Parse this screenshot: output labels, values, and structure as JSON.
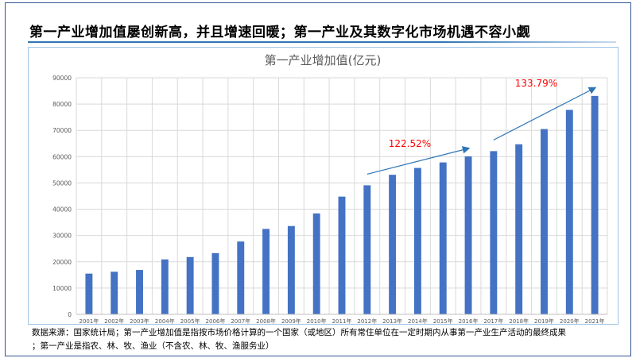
{
  "headline": "第一产业增加值屡创新高，并且增速回暖；第一产业及其数字化市场机遇不容小觑",
  "footnote": {
    "line1": "数据来源：国家统计局；第一产业增加值是指按市场价格计算的一个国家（或地区）所有常住单位在一定时期内从事第一产业生产活动的最终成果",
    "line2": "；第一产业是指农、林、牧、渔业（不含农、林、牧、渔服务业）"
  },
  "colors": {
    "bar": "#4472c4",
    "arrow": "#2e75b6",
    "annotation": "#ff0000",
    "title": "#595959",
    "axis_text": "#595959",
    "gridline": "#d9d9d9",
    "rule": "#2e75b6"
  },
  "chart_data": {
    "type": "bar",
    "title": "第一产业增加值(亿元)",
    "xlabel": "",
    "ylabel": "",
    "ylim": [
      0,
      90000
    ],
    "yticks": [
      0,
      10000,
      20000,
      30000,
      40000,
      50000,
      60000,
      70000,
      80000,
      90000
    ],
    "grid": true,
    "categories": [
      "2001年",
      "2002年",
      "2003年",
      "2004年",
      "2005年",
      "2006年",
      "2007年",
      "2008年",
      "2009年",
      "2010年",
      "2011年",
      "2012年",
      "2013年",
      "2014年",
      "2015年",
      "2016年",
      "2017年",
      "2018年",
      "2019年",
      "2020年",
      "2021年"
    ],
    "values": [
      15500,
      16200,
      16900,
      20900,
      21800,
      23300,
      27700,
      32500,
      33600,
      38400,
      44800,
      49100,
      53100,
      55700,
      57800,
      60100,
      62100,
      64700,
      70500,
      77800,
      83100
    ],
    "annotations": [
      {
        "text": "122.52%",
        "from_category": "2012年",
        "to_category": "2016年"
      },
      {
        "text": "133.79%",
        "from_category": "2017年",
        "to_category": "2021年"
      }
    ]
  }
}
